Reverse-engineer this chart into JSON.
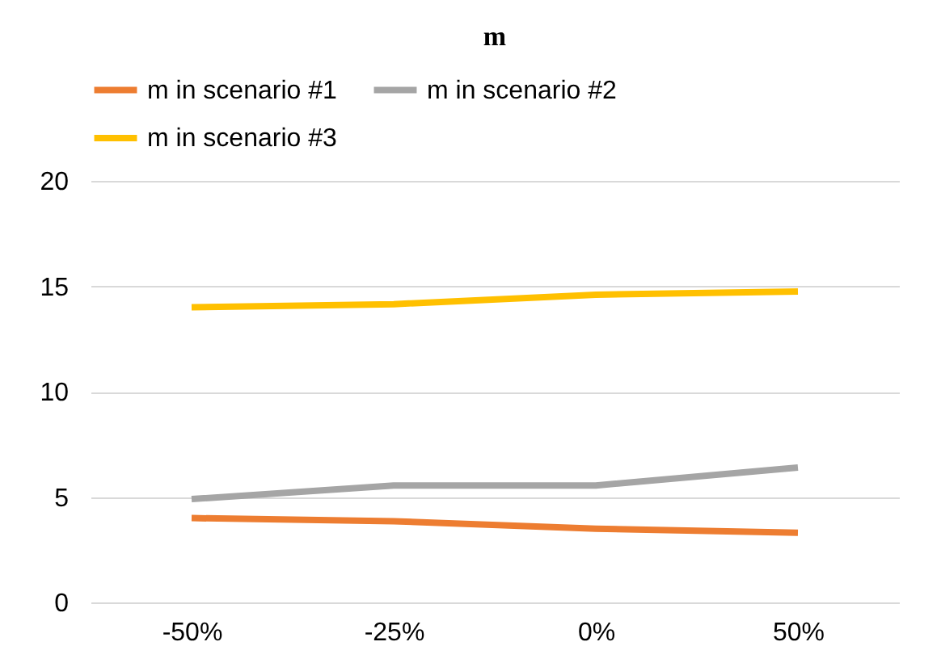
{
  "chart_data": {
    "type": "line",
    "title": "m",
    "categories": [
      "-50%",
      "-25%",
      "0%",
      "50%"
    ],
    "series": [
      {
        "name": "m in scenario #1",
        "color": "#ed7d31",
        "values": [
          4.0,
          3.85,
          3.5,
          3.3
        ]
      },
      {
        "name": "m in scenario #2",
        "color": "#a5a5a5",
        "values": [
          4.9,
          5.55,
          5.55,
          6.4
        ]
      },
      {
        "name": "m in scenario #3",
        "color": "#ffc000",
        "values": [
          14.0,
          14.15,
          14.6,
          14.75
        ]
      }
    ],
    "ylim": [
      0,
      20
    ],
    "yticks": [
      0,
      5,
      10,
      15,
      20
    ],
    "grid": "y",
    "legend": "top",
    "marker": "none",
    "line_style": "solid"
  }
}
